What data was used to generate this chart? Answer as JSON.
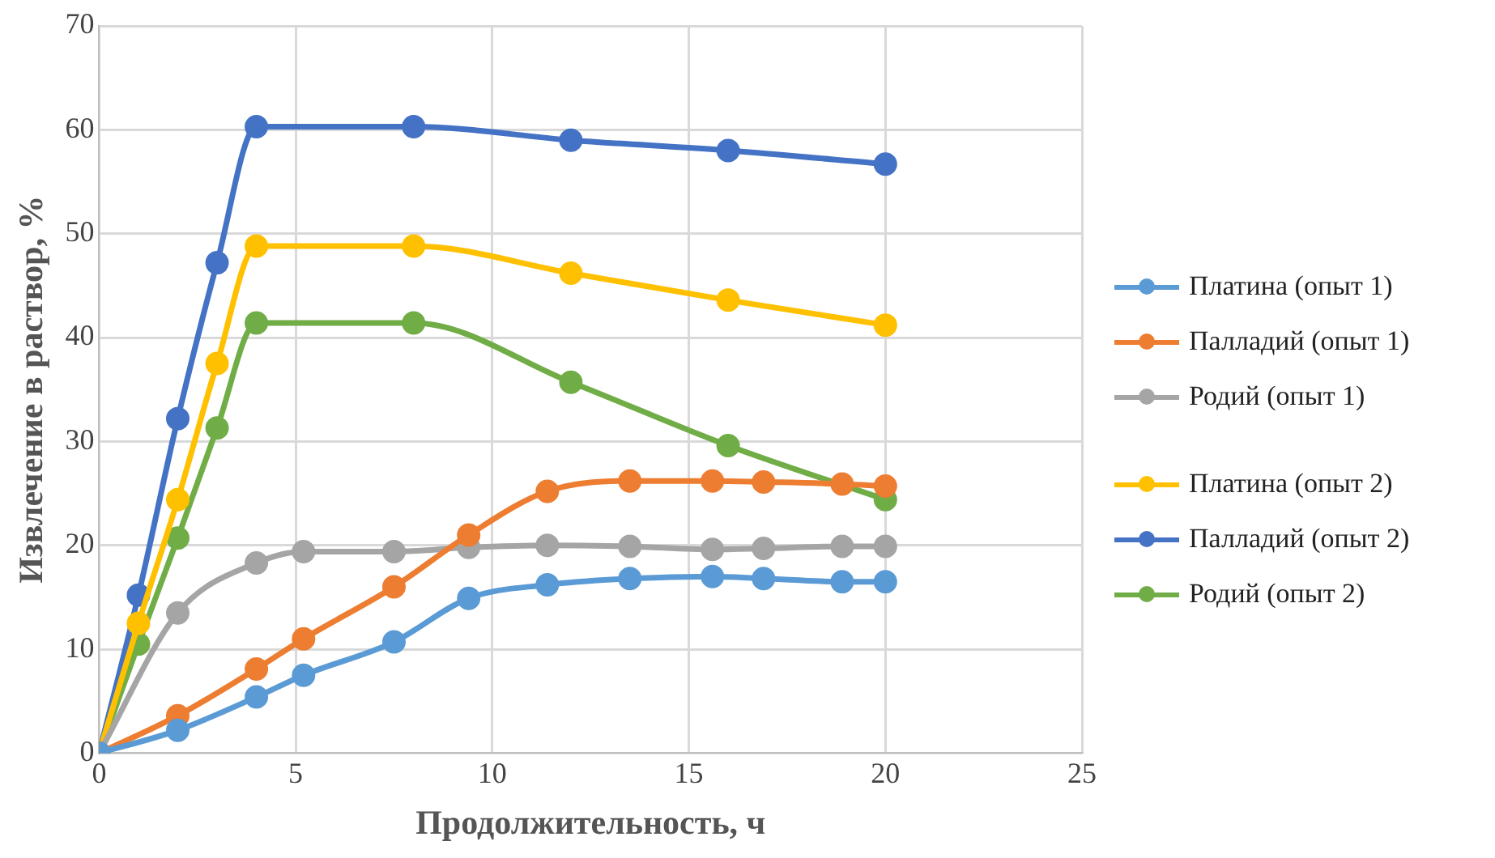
{
  "chart_data": {
    "type": "line",
    "xlabel": "Продолжительность, ч",
    "ylabel": "Извлечение в раствор, %",
    "xlim": [
      0,
      25
    ],
    "xticks": [
      0,
      5,
      10,
      15,
      20,
      25
    ],
    "ylim": [
      0,
      70
    ],
    "yticks": [
      0,
      10,
      20,
      30,
      40,
      50,
      60,
      70
    ],
    "grid": true,
    "legend": "right",
    "marker": "circle",
    "line_style": "solid",
    "series": [
      {
        "name": "Платина (опыт 1)",
        "color": "#5b9bd5",
        "x": [
          0,
          2,
          4,
          5.2,
          7.5,
          9.4,
          11.4,
          13.5,
          15.6,
          16.9,
          18.9,
          20
        ],
        "values": [
          0,
          2.2,
          5.4,
          7.5,
          10.7,
          14.9,
          16.2,
          16.8,
          17.0,
          16.8,
          16.5,
          16.5
        ]
      },
      {
        "name": "Палладий (опыт 1)",
        "color": "#ed7d31",
        "x": [
          0,
          2,
          4,
          5.2,
          7.5,
          9.4,
          11.4,
          13.5,
          15.6,
          16.9,
          18.9,
          20
        ],
        "values": [
          0,
          3.6,
          8.1,
          11.0,
          16.0,
          21.0,
          25.2,
          26.2,
          26.2,
          26.1,
          25.9,
          25.7
        ]
      },
      {
        "name": "Родий (опыт 1)",
        "color": "#a5a5a5",
        "x": [
          0,
          2,
          4,
          5.2,
          7.5,
          9.4,
          11.4,
          13.5,
          15.6,
          16.9,
          18.9,
          20
        ],
        "values": [
          0,
          13.5,
          18.3,
          19.4,
          19.4,
          19.8,
          20.0,
          19.9,
          19.6,
          19.7,
          19.9,
          19.9
        ]
      },
      {
        "name": "Платина (опыт 2)",
        "color": "#ffc000",
        "x": [
          0,
          1,
          2,
          3,
          4,
          8,
          12,
          16,
          20
        ],
        "values": [
          0,
          12.5,
          24.4,
          37.5,
          48.8,
          48.8,
          46.2,
          43.6,
          41.2
        ]
      },
      {
        "name": "Палладий (опыт 2)",
        "color": "#4472c4",
        "x": [
          0,
          1,
          2,
          3,
          4,
          8,
          12,
          16,
          20
        ],
        "values": [
          0,
          15.2,
          32.2,
          47.2,
          60.3,
          60.3,
          59.0,
          58.0,
          56.7
        ]
      },
      {
        "name": "Родий (опыт 2)",
        "color": "#70ad47",
        "x": [
          0,
          1,
          2,
          3,
          4,
          8,
          12,
          16,
          20
        ],
        "values": [
          0,
          10.5,
          20.7,
          31.3,
          41.4,
          41.4,
          35.7,
          29.6,
          24.4
        ]
      }
    ]
  }
}
